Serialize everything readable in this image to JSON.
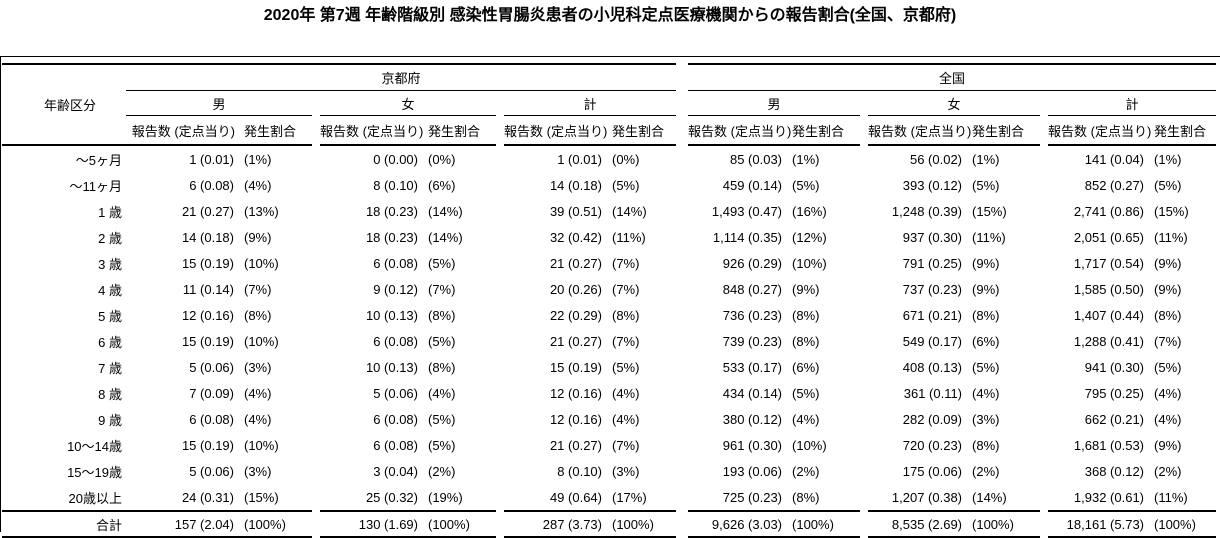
{
  "title": "2020年 第7週 年齢階級別 感染性胃腸炎患者の小児科定点医療機関からの報告割合(全国、京都府)",
  "table": {
    "age_header": "年齢区分",
    "sections": [
      {
        "label": "京都府"
      },
      {
        "label": "全国"
      }
    ],
    "genders": [
      "男",
      "女",
      "計"
    ],
    "count_header": "報告数 (定点当り)",
    "pct_header": "発生割合",
    "rows": [
      {
        "age": "～5ヶ月",
        "cells": [
          [
            "1 (0.01)",
            "(1%)"
          ],
          [
            "0 (0.00)",
            "(0%)"
          ],
          [
            "1 (0.01)",
            "(0%)"
          ],
          [
            "85 (0.03)",
            "(1%)"
          ],
          [
            "56 (0.02)",
            "(1%)"
          ],
          [
            "141 (0.04)",
            "(1%)"
          ]
        ]
      },
      {
        "age": "～11ヶ月",
        "cells": [
          [
            "6 (0.08)",
            "(4%)"
          ],
          [
            "8 (0.10)",
            "(6%)"
          ],
          [
            "14 (0.18)",
            "(5%)"
          ],
          [
            "459 (0.14)",
            "(5%)"
          ],
          [
            "393 (0.12)",
            "(5%)"
          ],
          [
            "852 (0.27)",
            "(5%)"
          ]
        ]
      },
      {
        "age": "1 歳",
        "cells": [
          [
            "21 (0.27)",
            "(13%)"
          ],
          [
            "18 (0.23)",
            "(14%)"
          ],
          [
            "39 (0.51)",
            "(14%)"
          ],
          [
            "1,493 (0.47)",
            "(16%)"
          ],
          [
            "1,248 (0.39)",
            "(15%)"
          ],
          [
            "2,741 (0.86)",
            "(15%)"
          ]
        ]
      },
      {
        "age": "2 歳",
        "cells": [
          [
            "14 (0.18)",
            "(9%)"
          ],
          [
            "18 (0.23)",
            "(14%)"
          ],
          [
            "32 (0.42)",
            "(11%)"
          ],
          [
            "1,114 (0.35)",
            "(12%)"
          ],
          [
            "937 (0.30)",
            "(11%)"
          ],
          [
            "2,051 (0.65)",
            "(11%)"
          ]
        ]
      },
      {
        "age": "3 歳",
        "cells": [
          [
            "15 (0.19)",
            "(10%)"
          ],
          [
            "6 (0.08)",
            "(5%)"
          ],
          [
            "21 (0.27)",
            "(7%)"
          ],
          [
            "926 (0.29)",
            "(10%)"
          ],
          [
            "791 (0.25)",
            "(9%)"
          ],
          [
            "1,717 (0.54)",
            "(9%)"
          ]
        ]
      },
      {
        "age": "4 歳",
        "cells": [
          [
            "11 (0.14)",
            "(7%)"
          ],
          [
            "9 (0.12)",
            "(7%)"
          ],
          [
            "20 (0.26)",
            "(7%)"
          ],
          [
            "848 (0.27)",
            "(9%)"
          ],
          [
            "737 (0.23)",
            "(9%)"
          ],
          [
            "1,585 (0.50)",
            "(9%)"
          ]
        ]
      },
      {
        "age": "5 歳",
        "cells": [
          [
            "12 (0.16)",
            "(8%)"
          ],
          [
            "10 (0.13)",
            "(8%)"
          ],
          [
            "22 (0.29)",
            "(8%)"
          ],
          [
            "736 (0.23)",
            "(8%)"
          ],
          [
            "671 (0.21)",
            "(8%)"
          ],
          [
            "1,407 (0.44)",
            "(8%)"
          ]
        ]
      },
      {
        "age": "6 歳",
        "cells": [
          [
            "15 (0.19)",
            "(10%)"
          ],
          [
            "6 (0.08)",
            "(5%)"
          ],
          [
            "21 (0.27)",
            "(7%)"
          ],
          [
            "739 (0.23)",
            "(8%)"
          ],
          [
            "549 (0.17)",
            "(6%)"
          ],
          [
            "1,288 (0.41)",
            "(7%)"
          ]
        ]
      },
      {
        "age": "7 歳",
        "cells": [
          [
            "5 (0.06)",
            "(3%)"
          ],
          [
            "10 (0.13)",
            "(8%)"
          ],
          [
            "15 (0.19)",
            "(5%)"
          ],
          [
            "533 (0.17)",
            "(6%)"
          ],
          [
            "408 (0.13)",
            "(5%)"
          ],
          [
            "941 (0.30)",
            "(5%)"
          ]
        ]
      },
      {
        "age": "8 歳",
        "cells": [
          [
            "7 (0.09)",
            "(4%)"
          ],
          [
            "5 (0.06)",
            "(4%)"
          ],
          [
            "12 (0.16)",
            "(4%)"
          ],
          [
            "434 (0.14)",
            "(5%)"
          ],
          [
            "361 (0.11)",
            "(4%)"
          ],
          [
            "795 (0.25)",
            "(4%)"
          ]
        ]
      },
      {
        "age": "9 歳",
        "cells": [
          [
            "6 (0.08)",
            "(4%)"
          ],
          [
            "6 (0.08)",
            "(5%)"
          ],
          [
            "12 (0.16)",
            "(4%)"
          ],
          [
            "380 (0.12)",
            "(4%)"
          ],
          [
            "282 (0.09)",
            "(3%)"
          ],
          [
            "662 (0.21)",
            "(4%)"
          ]
        ]
      },
      {
        "age": "10～14歳",
        "cells": [
          [
            "15 (0.19)",
            "(10%)"
          ],
          [
            "6 (0.08)",
            "(5%)"
          ],
          [
            "21 (0.27)",
            "(7%)"
          ],
          [
            "961 (0.30)",
            "(10%)"
          ],
          [
            "720 (0.23)",
            "(8%)"
          ],
          [
            "1,681 (0.53)",
            "(9%)"
          ]
        ]
      },
      {
        "age": "15～19歳",
        "cells": [
          [
            "5 (0.06)",
            "(3%)"
          ],
          [
            "3 (0.04)",
            "(2%)"
          ],
          [
            "8 (0.10)",
            "(3%)"
          ],
          [
            "193 (0.06)",
            "(2%)"
          ],
          [
            "175 (0.06)",
            "(2%)"
          ],
          [
            "368 (0.12)",
            "(2%)"
          ]
        ]
      },
      {
        "age": "20歳以上",
        "cells": [
          [
            "24 (0.31)",
            "(15%)"
          ],
          [
            "25 (0.32)",
            "(19%)"
          ],
          [
            "49 (0.64)",
            "(17%)"
          ],
          [
            "725 (0.23)",
            "(8%)"
          ],
          [
            "1,207 (0.38)",
            "(14%)"
          ],
          [
            "1,932 (0.61)",
            "(11%)"
          ]
        ]
      },
      {
        "age": "合計",
        "total": true,
        "cells": [
          [
            "157 (2.04)",
            "(100%)"
          ],
          [
            "130 (1.69)",
            "(100%)"
          ],
          [
            "287 (3.73)",
            "(100%)"
          ],
          [
            "9,626 (3.03)",
            "(100%)"
          ],
          [
            "8,535 (2.69)",
            "(100%)"
          ],
          [
            "18,161 (5.73)",
            "(100%)"
          ]
        ]
      }
    ]
  }
}
